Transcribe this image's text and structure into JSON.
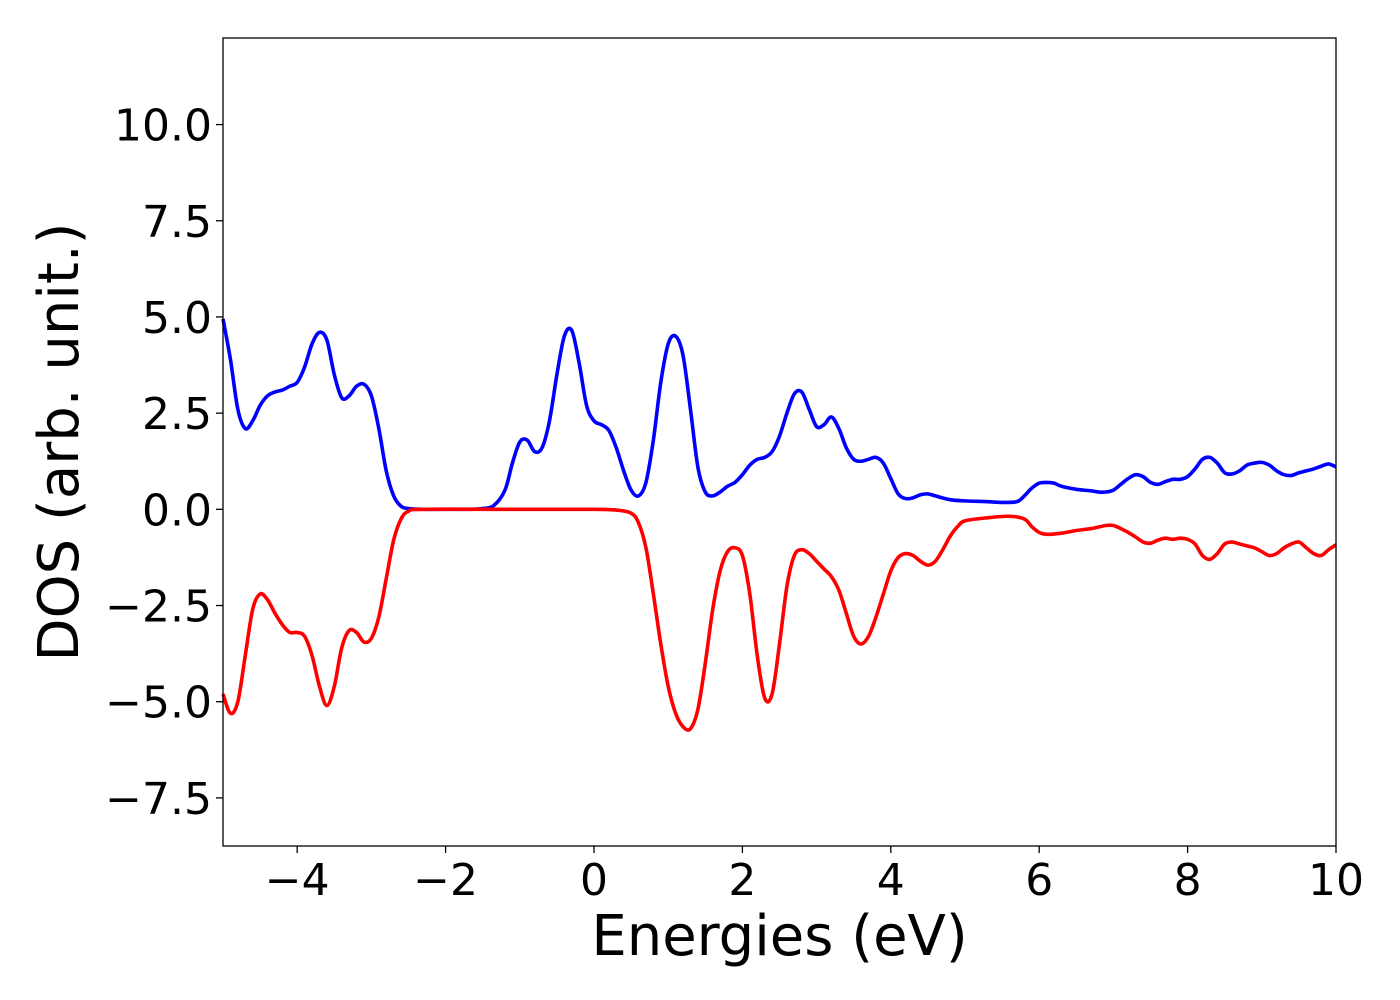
{
  "chart_data": {
    "type": "line",
    "title": "",
    "xlabel": "Energies (eV)",
    "ylabel": "DOS (arb. unit.)",
    "xlim": [
      -5,
      10
    ],
    "ylim": [
      -8.75,
      12.25
    ],
    "grid": false,
    "legend": "none",
    "x_ticks": [
      -4,
      -2,
      0,
      2,
      4,
      6,
      8,
      10
    ],
    "x_tick_labels": [
      "−4",
      "−2",
      "0",
      "2",
      "4",
      "6",
      "8",
      "10"
    ],
    "y_ticks": [
      10.0,
      7.5,
      5.0,
      2.5,
      0.0,
      -2.5,
      -5.0,
      -7.5
    ],
    "y_tick_labels": [
      "10.0",
      "7.5",
      "5.0",
      "2.5",
      "0.0",
      "−2.5",
      "−5.0",
      "−7.5"
    ],
    "series": [
      {
        "color": "#0000ff",
        "points": [
          [
            -5.0,
            4.95
          ],
          [
            -4.9,
            3.9
          ],
          [
            -4.8,
            2.6
          ],
          [
            -4.7,
            2.1
          ],
          [
            -4.6,
            2.3
          ],
          [
            -4.5,
            2.7
          ],
          [
            -4.4,
            2.95
          ],
          [
            -4.3,
            3.05
          ],
          [
            -4.2,
            3.1
          ],
          [
            -4.1,
            3.2
          ],
          [
            -4.0,
            3.3
          ],
          [
            -3.9,
            3.7
          ],
          [
            -3.8,
            4.3
          ],
          [
            -3.7,
            4.6
          ],
          [
            -3.6,
            4.4
          ],
          [
            -3.5,
            3.5
          ],
          [
            -3.4,
            2.9
          ],
          [
            -3.3,
            2.95
          ],
          [
            -3.2,
            3.2
          ],
          [
            -3.1,
            3.25
          ],
          [
            -3.0,
            2.95
          ],
          [
            -2.9,
            2.1
          ],
          [
            -2.8,
            1.0
          ],
          [
            -2.7,
            0.35
          ],
          [
            -2.6,
            0.08
          ],
          [
            -2.5,
            0.02
          ],
          [
            -2.3,
            0.0
          ],
          [
            -2.0,
            0.0
          ],
          [
            -1.7,
            0.0
          ],
          [
            -1.5,
            0.02
          ],
          [
            -1.35,
            0.1
          ],
          [
            -1.2,
            0.5
          ],
          [
            -1.1,
            1.2
          ],
          [
            -1.0,
            1.75
          ],
          [
            -0.9,
            1.8
          ],
          [
            -0.8,
            1.5
          ],
          [
            -0.7,
            1.6
          ],
          [
            -0.6,
            2.3
          ],
          [
            -0.5,
            3.5
          ],
          [
            -0.4,
            4.5
          ],
          [
            -0.3,
            4.65
          ],
          [
            -0.2,
            3.8
          ],
          [
            -0.1,
            2.7
          ],
          [
            0.0,
            2.3
          ],
          [
            0.1,
            2.2
          ],
          [
            0.2,
            2.05
          ],
          [
            0.3,
            1.6
          ],
          [
            0.4,
            1.0
          ],
          [
            0.5,
            0.5
          ],
          [
            0.6,
            0.35
          ],
          [
            0.7,
            0.7
          ],
          [
            0.8,
            1.8
          ],
          [
            0.9,
            3.3
          ],
          [
            1.0,
            4.3
          ],
          [
            1.1,
            4.5
          ],
          [
            1.2,
            4.0
          ],
          [
            1.3,
            2.6
          ],
          [
            1.4,
            1.1
          ],
          [
            1.5,
            0.45
          ],
          [
            1.6,
            0.35
          ],
          [
            1.7,
            0.45
          ],
          [
            1.8,
            0.6
          ],
          [
            1.9,
            0.7
          ],
          [
            2.0,
            0.9
          ],
          [
            2.1,
            1.15
          ],
          [
            2.2,
            1.3
          ],
          [
            2.3,
            1.35
          ],
          [
            2.4,
            1.5
          ],
          [
            2.5,
            1.9
          ],
          [
            2.6,
            2.5
          ],
          [
            2.7,
            3.0
          ],
          [
            2.8,
            3.05
          ],
          [
            2.9,
            2.6
          ],
          [
            3.0,
            2.15
          ],
          [
            3.1,
            2.2
          ],
          [
            3.2,
            2.4
          ],
          [
            3.3,
            2.1
          ],
          [
            3.4,
            1.6
          ],
          [
            3.5,
            1.3
          ],
          [
            3.6,
            1.25
          ],
          [
            3.7,
            1.3
          ],
          [
            3.8,
            1.35
          ],
          [
            3.9,
            1.2
          ],
          [
            4.0,
            0.8
          ],
          [
            4.1,
            0.4
          ],
          [
            4.2,
            0.28
          ],
          [
            4.3,
            0.3
          ],
          [
            4.4,
            0.38
          ],
          [
            4.5,
            0.4
          ],
          [
            4.6,
            0.35
          ],
          [
            4.8,
            0.25
          ],
          [
            5.0,
            0.22
          ],
          [
            5.3,
            0.2
          ],
          [
            5.5,
            0.18
          ],
          [
            5.7,
            0.2
          ],
          [
            5.8,
            0.35
          ],
          [
            5.9,
            0.55
          ],
          [
            6.0,
            0.68
          ],
          [
            6.1,
            0.7
          ],
          [
            6.2,
            0.68
          ],
          [
            6.3,
            0.6
          ],
          [
            6.5,
            0.52
          ],
          [
            6.7,
            0.48
          ],
          [
            6.8,
            0.45
          ],
          [
            6.9,
            0.45
          ],
          [
            7.0,
            0.5
          ],
          [
            7.1,
            0.65
          ],
          [
            7.2,
            0.8
          ],
          [
            7.3,
            0.9
          ],
          [
            7.4,
            0.85
          ],
          [
            7.5,
            0.7
          ],
          [
            7.6,
            0.65
          ],
          [
            7.7,
            0.72
          ],
          [
            7.8,
            0.78
          ],
          [
            7.9,
            0.78
          ],
          [
            8.0,
            0.85
          ],
          [
            8.1,
            1.05
          ],
          [
            8.2,
            1.3
          ],
          [
            8.3,
            1.35
          ],
          [
            8.4,
            1.2
          ],
          [
            8.5,
            0.95
          ],
          [
            8.6,
            0.92
          ],
          [
            8.7,
            1.0
          ],
          [
            8.8,
            1.15
          ],
          [
            8.9,
            1.2
          ],
          [
            9.0,
            1.22
          ],
          [
            9.1,
            1.15
          ],
          [
            9.2,
            1.0
          ],
          [
            9.3,
            0.9
          ],
          [
            9.4,
            0.88
          ],
          [
            9.5,
            0.95
          ],
          [
            9.6,
            1.0
          ],
          [
            9.7,
            1.05
          ],
          [
            9.8,
            1.12
          ],
          [
            9.9,
            1.18
          ],
          [
            10.0,
            1.1
          ]
        ]
      },
      {
        "color": "#ff0000",
        "points": [
          [
            -5.0,
            -4.8
          ],
          [
            -4.9,
            -5.3
          ],
          [
            -4.8,
            -5.0
          ],
          [
            -4.7,
            -3.8
          ],
          [
            -4.6,
            -2.6
          ],
          [
            -4.5,
            -2.2
          ],
          [
            -4.4,
            -2.35
          ],
          [
            -4.3,
            -2.7
          ],
          [
            -4.2,
            -3.0
          ],
          [
            -4.1,
            -3.2
          ],
          [
            -4.0,
            -3.2
          ],
          [
            -3.9,
            -3.3
          ],
          [
            -3.8,
            -3.8
          ],
          [
            -3.7,
            -4.6
          ],
          [
            -3.6,
            -5.1
          ],
          [
            -3.5,
            -4.6
          ],
          [
            -3.4,
            -3.6
          ],
          [
            -3.3,
            -3.15
          ],
          [
            -3.2,
            -3.2
          ],
          [
            -3.1,
            -3.45
          ],
          [
            -3.0,
            -3.35
          ],
          [
            -2.9,
            -2.8
          ],
          [
            -2.8,
            -1.8
          ],
          [
            -2.7,
            -0.8
          ],
          [
            -2.6,
            -0.25
          ],
          [
            -2.5,
            -0.05
          ],
          [
            -2.3,
            0.0
          ],
          [
            -1.0,
            0.0
          ],
          [
            0.0,
            0.0
          ],
          [
            0.3,
            -0.02
          ],
          [
            0.5,
            -0.1
          ],
          [
            0.6,
            -0.35
          ],
          [
            0.7,
            -1.0
          ],
          [
            0.8,
            -2.2
          ],
          [
            0.9,
            -3.5
          ],
          [
            1.0,
            -4.6
          ],
          [
            1.1,
            -5.3
          ],
          [
            1.2,
            -5.65
          ],
          [
            1.3,
            -5.7
          ],
          [
            1.4,
            -5.2
          ],
          [
            1.5,
            -4.0
          ],
          [
            1.6,
            -2.6
          ],
          [
            1.7,
            -1.6
          ],
          [
            1.8,
            -1.1
          ],
          [
            1.9,
            -1.0
          ],
          [
            2.0,
            -1.2
          ],
          [
            2.1,
            -2.2
          ],
          [
            2.2,
            -3.8
          ],
          [
            2.3,
            -4.9
          ],
          [
            2.4,
            -4.8
          ],
          [
            2.5,
            -3.5
          ],
          [
            2.6,
            -2.0
          ],
          [
            2.7,
            -1.2
          ],
          [
            2.8,
            -1.05
          ],
          [
            2.9,
            -1.15
          ],
          [
            3.0,
            -1.35
          ],
          [
            3.1,
            -1.55
          ],
          [
            3.2,
            -1.75
          ],
          [
            3.3,
            -2.1
          ],
          [
            3.4,
            -2.7
          ],
          [
            3.5,
            -3.3
          ],
          [
            3.6,
            -3.5
          ],
          [
            3.7,
            -3.3
          ],
          [
            3.8,
            -2.8
          ],
          [
            3.9,
            -2.2
          ],
          [
            4.0,
            -1.6
          ],
          [
            4.1,
            -1.25
          ],
          [
            4.2,
            -1.15
          ],
          [
            4.3,
            -1.2
          ],
          [
            4.4,
            -1.35
          ],
          [
            4.5,
            -1.45
          ],
          [
            4.6,
            -1.35
          ],
          [
            4.7,
            -1.05
          ],
          [
            4.8,
            -0.7
          ],
          [
            4.9,
            -0.45
          ],
          [
            5.0,
            -0.3
          ],
          [
            5.3,
            -0.22
          ],
          [
            5.6,
            -0.18
          ],
          [
            5.8,
            -0.25
          ],
          [
            5.9,
            -0.45
          ],
          [
            6.0,
            -0.6
          ],
          [
            6.1,
            -0.65
          ],
          [
            6.3,
            -0.62
          ],
          [
            6.5,
            -0.55
          ],
          [
            6.7,
            -0.5
          ],
          [
            6.9,
            -0.42
          ],
          [
            7.0,
            -0.42
          ],
          [
            7.1,
            -0.5
          ],
          [
            7.2,
            -0.6
          ],
          [
            7.3,
            -0.72
          ],
          [
            7.4,
            -0.85
          ],
          [
            7.5,
            -0.88
          ],
          [
            7.6,
            -0.8
          ],
          [
            7.7,
            -0.75
          ],
          [
            7.8,
            -0.78
          ],
          [
            7.9,
            -0.75
          ],
          [
            8.0,
            -0.78
          ],
          [
            8.1,
            -0.9
          ],
          [
            8.2,
            -1.2
          ],
          [
            8.3,
            -1.3
          ],
          [
            8.4,
            -1.15
          ],
          [
            8.5,
            -0.9
          ],
          [
            8.6,
            -0.85
          ],
          [
            8.7,
            -0.9
          ],
          [
            8.8,
            -0.95
          ],
          [
            8.9,
            -1.0
          ],
          [
            9.0,
            -1.1
          ],
          [
            9.1,
            -1.2
          ],
          [
            9.2,
            -1.15
          ],
          [
            9.3,
            -1.0
          ],
          [
            9.4,
            -0.9
          ],
          [
            9.5,
            -0.85
          ],
          [
            9.6,
            -1.0
          ],
          [
            9.7,
            -1.15
          ],
          [
            9.8,
            -1.2
          ],
          [
            9.9,
            -1.05
          ],
          [
            10.0,
            -0.92
          ]
        ]
      }
    ]
  }
}
